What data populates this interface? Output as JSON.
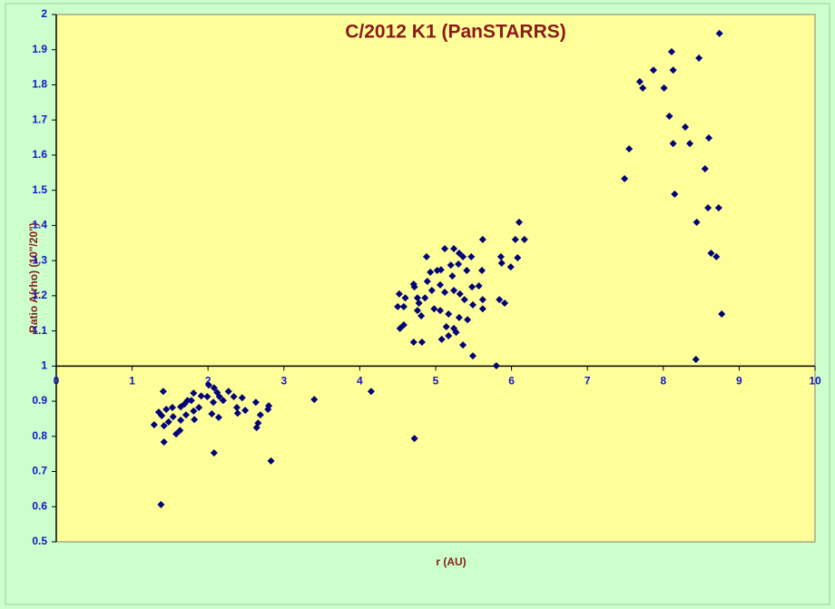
{
  "chart_data": {
    "type": "scatter",
    "title": "C/2012 K1 (PanSTARRS)",
    "x_label": "r (AU)",
    "y_label": "Ratio A(rho) (10\"/20\")",
    "color": "#00007a",
    "xlim": [
      0,
      10
    ],
    "xticks": [
      0,
      1,
      2,
      3,
      4,
      5,
      6,
      7,
      8,
      9,
      10
    ],
    "ylim": [
      0.5,
      2
    ],
    "yticks": [
      0.5,
      0.6,
      0.7,
      0.8,
      0.9,
      1,
      1.1,
      1.2,
      1.3,
      1.4,
      1.5,
      1.6,
      1.7,
      1.8,
      1.9,
      2
    ],
    "x_axis_at": 1,
    "x": [
      8.74,
      8.11,
      8.47,
      7.87,
      8.13,
      7.69,
      7.73,
      8.01,
      8.08,
      8.29,
      8.13,
      8.35,
      7.55,
      8.6,
      8.55,
      7.49,
      8.15,
      8.59,
      8.73,
      8.44,
      8.63,
      8.7,
      8.77,
      8.43,
      6.1,
      6.17,
      6.05,
      5.62,
      6.08,
      5.86,
      5.87,
      5.99,
      4.88,
      5.12,
      5.24,
      5.31,
      5.47,
      5.36,
      4.93,
      5.02,
      5.07,
      5.2,
      5.3,
      5.41,
      5.61,
      4.71,
      4.72,
      4.89,
      5.06,
      5.22,
      5.48,
      5.57,
      4.52,
      4.6,
      4.76,
      4.86,
      4.78,
      4.95,
      5.12,
      5.24,
      5.32,
      5.38,
      5.49,
      5.62,
      5.84,
      5.91,
      4.5,
      4.58,
      4.76,
      4.81,
      4.98,
      5.06,
      5.17,
      5.31,
      5.42,
      5.62,
      4.58,
      4.53,
      5.14,
      5.24,
      5.08,
      5.17,
      5.27,
      4.71,
      4.82,
      5.36,
      5.49,
      5.8,
      4.15,
      3.4,
      4.72,
      2.83,
      2.08,
      1.38,
      1.41,
      1.81,
      2.01,
      2.08,
      2.27,
      1.91,
      1.99,
      2.15,
      2.34,
      2.45,
      2.63,
      2.8,
      2.79,
      1.78,
      1.69,
      1.64,
      1.53,
      1.45,
      1.35,
      1.39,
      1.54,
      1.81,
      1.88,
      2.07,
      2.2,
      2.38,
      2.49,
      2.69,
      2.39,
      2.05,
      2.14,
      1.71,
      1.64,
      1.48,
      1.42,
      1.29,
      1.58,
      1.63,
      1.82,
      2.64,
      2.66,
      1.42,
      1.73,
      2.12
    ],
    "values": [
      1.946,
      1.894,
      1.876,
      1.842,
      1.842,
      1.809,
      1.791,
      1.791,
      1.711,
      1.68,
      1.633,
      1.633,
      1.618,
      1.649,
      1.561,
      1.533,
      1.489,
      1.45,
      1.45,
      1.409,
      1.321,
      1.311,
      1.148,
      1.019,
      1.409,
      1.36,
      1.36,
      1.36,
      1.308,
      1.311,
      1.293,
      1.282,
      1.311,
      1.334,
      1.334,
      1.321,
      1.311,
      1.311,
      1.267,
      1.272,
      1.274,
      1.287,
      1.29,
      1.272,
      1.272,
      1.233,
      1.225,
      1.241,
      1.231,
      1.256,
      1.225,
      1.228,
      1.205,
      1.194,
      1.194,
      1.194,
      1.179,
      1.215,
      1.21,
      1.215,
      1.205,
      1.189,
      1.174,
      1.189,
      1.189,
      1.179,
      1.169,
      1.169,
      1.158,
      1.143,
      1.163,
      1.158,
      1.148,
      1.138,
      1.132,
      1.163,
      1.117,
      1.107,
      1.112,
      1.107,
      1.076,
      1.086,
      1.096,
      1.068,
      1.068,
      1.06,
      1.029,
      1.001,
      0.928,
      0.905,
      0.794,
      0.73,
      0.753,
      0.606,
      0.928,
      0.923,
      0.946,
      0.938,
      0.928,
      0.915,
      0.913,
      0.913,
      0.913,
      0.91,
      0.897,
      0.887,
      0.877,
      0.902,
      0.892,
      0.884,
      0.882,
      0.877,
      0.869,
      0.859,
      0.856,
      0.872,
      0.882,
      0.897,
      0.902,
      0.882,
      0.874,
      0.861,
      0.866,
      0.864,
      0.854,
      0.861,
      0.846,
      0.841,
      0.83,
      0.833,
      0.807,
      0.817,
      0.848,
      0.825,
      0.838,
      0.784,
      0.902,
      0.925
    ]
  }
}
